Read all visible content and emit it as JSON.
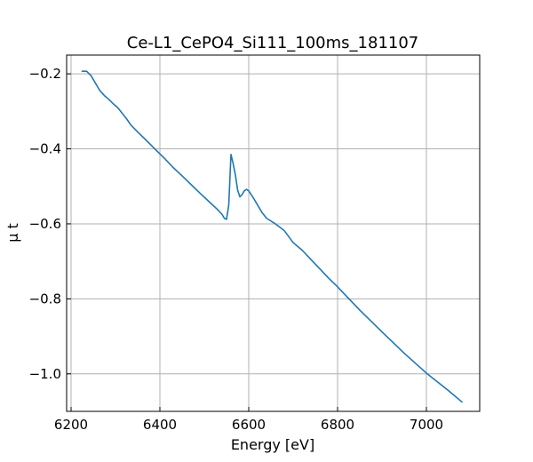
{
  "chart_data": {
    "type": "line",
    "title": "Ce-L1_CePO4_Si111_100ms_181107",
    "xlabel": "Energy [eV]",
    "ylabel": "μ t",
    "xlim": [
      6190,
      7120
    ],
    "ylim": [
      -1.1,
      -0.15
    ],
    "xticks": [
      6200,
      6400,
      6600,
      6800,
      7000
    ],
    "xtick_labels": [
      "6200",
      "6400",
      "6600",
      "6800",
      "7000"
    ],
    "yticks": [
      -0.2,
      -0.4,
      -0.6,
      -0.8,
      -1.0
    ],
    "ytick_labels": [
      "−0.2",
      "−0.4",
      "−0.6",
      "−0.8",
      "−1.0"
    ],
    "grid": true,
    "colors": {
      "series": "#1f77b4"
    },
    "series": [
      {
        "x": [
          6225,
          6235,
          6245,
          6255,
          6265,
          6275,
          6285,
          6295,
          6305,
          6315,
          6325,
          6335,
          6350,
          6370,
          6390,
          6410,
          6430,
          6450,
          6470,
          6490,
          6510,
          6530,
          6540,
          6545,
          6550,
          6555,
          6560,
          6565,
          6570,
          6575,
          6580,
          6585,
          6590,
          6595,
          6600,
          6610,
          6620,
          6630,
          6640,
          6660,
          6680,
          6700,
          6720,
          6740,
          6760,
          6780,
          6800,
          6850,
          6900,
          6950,
          7000,
          7050,
          7080
        ],
        "values": [
          -0.193,
          -0.193,
          -0.205,
          -0.225,
          -0.245,
          -0.258,
          -0.268,
          -0.28,
          -0.29,
          -0.305,
          -0.32,
          -0.337,
          -0.355,
          -0.378,
          -0.402,
          -0.425,
          -0.45,
          -0.472,
          -0.495,
          -0.518,
          -0.54,
          -0.562,
          -0.575,
          -0.585,
          -0.588,
          -0.55,
          -0.415,
          -0.44,
          -0.47,
          -0.51,
          -0.528,
          -0.522,
          -0.512,
          -0.508,
          -0.512,
          -0.53,
          -0.55,
          -0.57,
          -0.585,
          -0.6,
          -0.618,
          -0.65,
          -0.67,
          -0.695,
          -0.72,
          -0.745,
          -0.768,
          -0.83,
          -0.888,
          -0.945,
          -0.998,
          -1.045,
          -1.075
        ]
      }
    ]
  }
}
